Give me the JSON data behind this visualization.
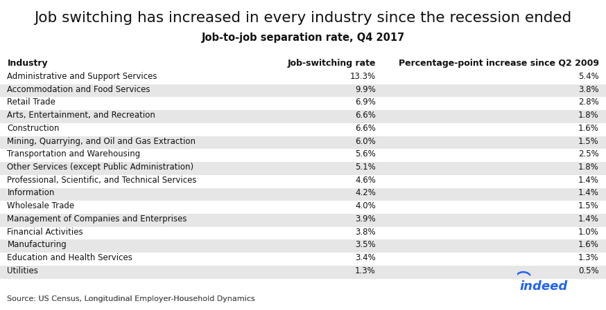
{
  "title": "Job switching has increased in every industry since the recession ended",
  "subtitle": "Job-to-job separation rate, Q4 2017",
  "col_headers": [
    "Industry",
    "Job-switching rate",
    "Percentage-point increase since Q2 2009"
  ],
  "industries": [
    "Administrative and Support Services",
    "Accommodation and Food Services",
    "Retail Trade",
    "Arts, Entertainment, and Recreation",
    "Construction",
    "Mining, Quarrying, and Oil and Gas Extraction",
    "Transportation and Warehousing",
    "Other Services (except Public Administration)",
    "Professional, Scientific, and Technical Services",
    "Information",
    "Wholesale Trade",
    "Management of Companies and Enterprises",
    "Financial Activities",
    "Manufacturing",
    "Education and Health Services",
    "Utilities"
  ],
  "job_switching_rate": [
    "13.3%",
    "9.9%",
    "6.9%",
    "6.6%",
    "6.6%",
    "6.0%",
    "5.6%",
    "5.1%",
    "4.6%",
    "4.2%",
    "4.0%",
    "3.9%",
    "3.8%",
    "3.5%",
    "3.4%",
    "1.3%"
  ],
  "pct_point_increase": [
    "5.4%",
    "3.8%",
    "2.8%",
    "1.8%",
    "1.6%",
    "1.5%",
    "2.5%",
    "1.8%",
    "1.4%",
    "1.4%",
    "1.5%",
    "1.4%",
    "1.0%",
    "1.6%",
    "1.3%",
    "0.5%"
  ],
  "source_text": "Source: US Census, Longitudinal Employer-Household Dynamics",
  "bg_color": "#ffffff",
  "stripe_color": "#e6e6e6",
  "title_fontsize": 15.5,
  "subtitle_fontsize": 10.5,
  "header_fontsize": 9.0,
  "row_fontsize": 8.5,
  "source_fontsize": 8.0,
  "indeed_color": "#2164f3",
  "text_color": "#111111",
  "source_color": "#555555"
}
